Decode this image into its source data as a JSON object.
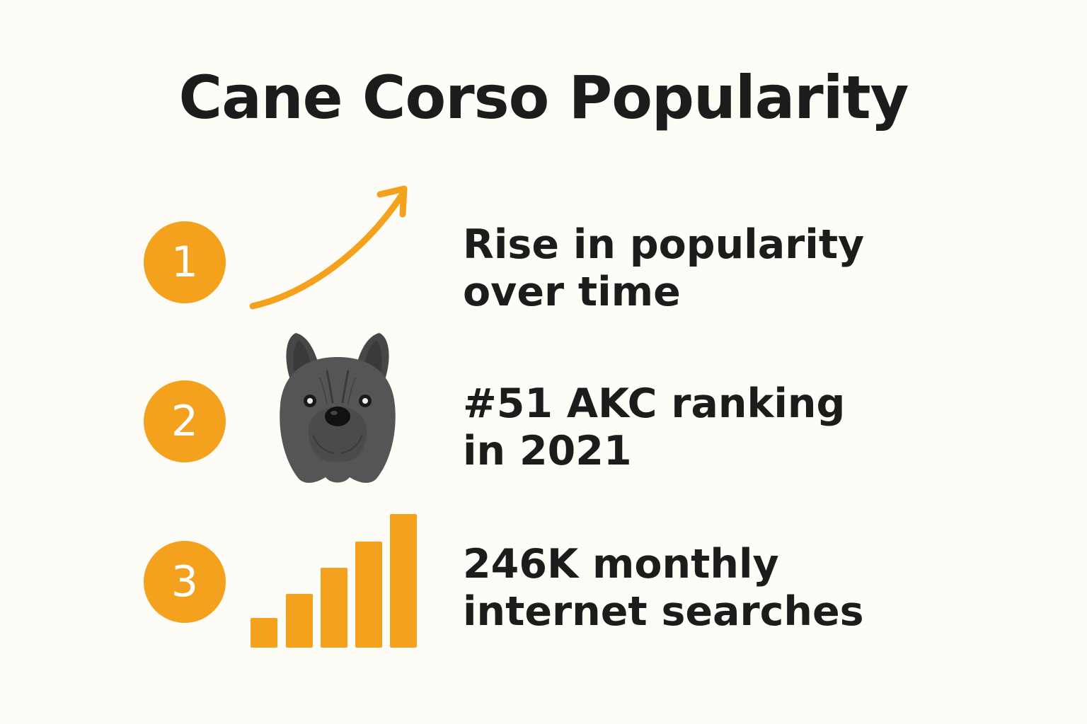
{
  "title": "Cane Corso Popularity",
  "accent_color": "#f4a11d",
  "items": [
    {
      "number": "1",
      "icon": "trend-up-arrow-icon",
      "line1": "Rise in popularity",
      "line2": "over time"
    },
    {
      "number": "2",
      "icon": "cane-corso-dog-face-icon",
      "line1": "#51 AKC ranking",
      "line2": "in 2021"
    },
    {
      "number": "3",
      "icon": "bar-growth-icon",
      "line1": "246K monthly",
      "line2": "internet searches"
    }
  ]
}
